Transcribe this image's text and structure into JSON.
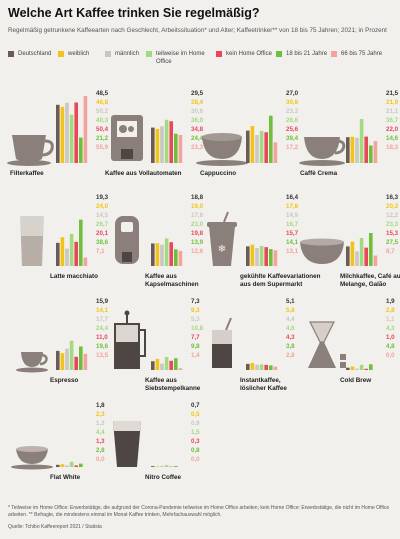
{
  "title": "Welche Art Kaffee trinken Sie regelmäßig?",
  "subtitle": "Regelmäßig getrunkene Kaffeearten nach Geschlecht, Arbeitssituation* und Alter; Kaffeetrinker** von 18 bis 75 Jahren; 2021; in Prozent",
  "colors": {
    "background": "#f2f0ec",
    "icon": "#8a7f7a",
    "series": [
      "#6a5c55",
      "#f2c419",
      "#c9c7c3",
      "#a3d97f",
      "#e8485a",
      "#6fbf3b",
      "#f2a39d"
    ]
  },
  "legend": {
    "items": [
      {
        "label": "Deutschland",
        "icon": "swatch"
      },
      {
        "label": "weiblich",
        "icon": "swatch"
      },
      {
        "label": "männlich",
        "icon": "swatch"
      },
      {
        "label": "teilweise im Home Office",
        "icon": "swatch"
      },
      {
        "label": "kein Home Office",
        "icon": "swatch"
      },
      {
        "label": "18 bis 21 Jahre",
        "icon": "swatch"
      },
      {
        "label": "66 bis 75 Jahre",
        "icon": "swatch"
      }
    ]
  },
  "chart_data": {
    "type": "bar",
    "categories": [
      "Filterkaffee",
      "Kaffee aus Vollautomaten",
      "Cappuccino",
      "Caffè Crema",
      "Latte macchiato",
      "Kaffee aus Kapselmaschinen",
      "gekühlte Kaffeevariationen aus dem Supermarkt",
      "Milchkaffee, Café au Lait, Melange, Galão",
      "Espresso",
      "Kaffee aus Siebstempelkanne",
      "Instantkaffee, löslicher Kaffee",
      "Cold Brew",
      "Flat White",
      "Nitro Coffee"
    ],
    "category_labels": [
      "Filterkaffee",
      "Kaffee aus Vollautomaten",
      "Cappuccino",
      "Caffè Crema",
      "Latte macchiato",
      "Kaffee aus\nKapselmaschinen",
      "gekühlte Kaffeevariationen\naus dem Supermarkt",
      "Milchkaffee, Café au Lait,\nMelange, Galão",
      "Espresso",
      "Kaffee aus\nSiebstempelkanne",
      "Instantkaffee,\nlöslicher Kaffee",
      "Cold Brew",
      "Flat White",
      "Nitro Coffee"
    ],
    "category_icons": [
      "filter-coffee-cup-icon",
      "espresso-machine-icon",
      "cappuccino-cup-icon",
      "crema-cup-icon",
      "latte-glass-icon",
      "capsule-machine-icon",
      "iced-coffee-cup-icon",
      "milk-coffee-bowl-icon",
      "espresso-cup-icon",
      "french-press-icon",
      "instant-coffee-glass-icon",
      "cold-brew-carafe-icon",
      "flat-white-cup-icon",
      "nitro-coffee-glass-icon"
    ],
    "series": [
      {
        "name": "Deutschland",
        "values": [
          48.5,
          29.5,
          27.0,
          21.5,
          19.3,
          18.8,
          16.4,
          16.3,
          15.9,
          7.3,
          5.1,
          1.9,
          1.8,
          0.7
        ]
      },
      {
        "name": "weiblich",
        "values": [
          46.8,
          28.4,
          30.8,
          21.9,
          24.0,
          19.0,
          17.8,
          20.3,
          14.1,
          9.3,
          5.8,
          2.8,
          2.3,
          0.5
        ]
      },
      {
        "name": "männlich",
        "values": [
          50.2,
          30.6,
          23.3,
          21.1,
          14.5,
          17.8,
          14.9,
          12.2,
          17.7,
          5.3,
          4.4,
          1.1,
          1.3,
          0.9
        ]
      },
      {
        "name": "teilweise im Home Office",
        "values": [
          40.3,
          36.0,
          26.6,
          36.7,
          26.7,
          23.0,
          16.7,
          23.3,
          24.4,
          10.8,
          4.6,
          4.3,
          4.4,
          1.5
        ]
      },
      {
        "name": "kein Home Office",
        "values": [
          50.4,
          34.8,
          25.6,
          22.0,
          20.1,
          19.8,
          15.7,
          15.3,
          11.0,
          7.7,
          4.3,
          1.0,
          1.3,
          0.3
        ]
      },
      {
        "name": "18 bis 21 Jahre",
        "values": [
          21.2,
          24.4,
          39.4,
          14.6,
          38.6,
          13.9,
          14.1,
          27.5,
          19.6,
          9.8,
          3.8,
          4.8,
          2.8,
          0.8
        ]
      },
      {
        "name": "66 bis 75 Jahre",
        "values": [
          55.9,
          23.3,
          17.2,
          18.3,
          7.1,
          12.6,
          13.1,
          8.7,
          13.5,
          1.4,
          2.8,
          0.0,
          0.0,
          0.0
        ]
      }
    ],
    "value_labels": [
      [
        "48,5",
        "46,8",
        "50,2",
        "40,3",
        "50,4",
        "21,2",
        "55,9"
      ],
      [
        "29,5",
        "28,4",
        "30,6",
        "36,0",
        "34,8",
        "24,4",
        "23,3"
      ],
      [
        "27,0",
        "30,8",
        "23,3",
        "26,6",
        "25,6",
        "39,4",
        "17,2"
      ],
      [
        "21,5",
        "21,9",
        "21,1",
        "36,7",
        "22,0",
        "14,6",
        "18,3"
      ],
      [
        "19,3",
        "24,0",
        "14,5",
        "26,7",
        "20,1",
        "38,6",
        "7,1"
      ],
      [
        "18,8",
        "19,0",
        "17,8",
        "23,0",
        "19,8",
        "13,9",
        "12,6"
      ],
      [
        "16,4",
        "17,8",
        "14,9",
        "16,7",
        "15,7",
        "14,1",
        "13,1"
      ],
      [
        "16,3",
        "20,3",
        "12,2",
        "23,3",
        "15,3",
        "27,5",
        "8,7"
      ],
      [
        "15,9",
        "14,1",
        "17,7",
        "24,4",
        "11,0",
        "19,6",
        "13,5"
      ],
      [
        "7,3",
        "9,3",
        "5,3",
        "10,8",
        "7,7",
        "9,8",
        "1,4"
      ],
      [
        "5,1",
        "5,8",
        "4,4",
        "4,6",
        "4,3",
        "3,8",
        "2,8"
      ],
      [
        "1,9",
        "2,8",
        "1,1",
        "4,3",
        "1,0",
        "4,8",
        "0,0"
      ],
      [
        "1,8",
        "2,3",
        "1,3",
        "4,4",
        "1,3",
        "2,8",
        "0,0"
      ],
      [
        "0,7",
        "0,5",
        "0,9",
        "1,5",
        "0,3",
        "0,8",
        "0,0"
      ]
    ],
    "grid": false,
    "legend_position": "top"
  },
  "footnote": "* Teilweise im Home Office: Erwerbstätige, die aufgrund der Corona-Pandemie teilweise im Home Office arbeiten; kein Home Office: Erwerbstätige, die nicht im Home Office arbeiten. ** Befragte, die mindestens einmal im Monat Kaffee trinken, Mehrfachauswahl möglich.",
  "source": "Quelle: Tchibo Kaffeereport 2021 / Statista"
}
